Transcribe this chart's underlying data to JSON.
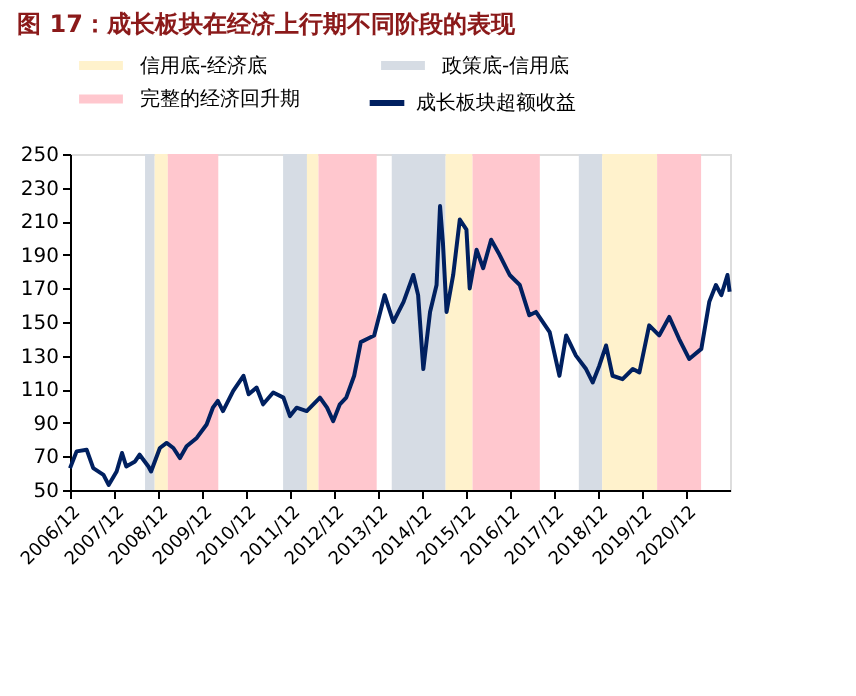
{
  "chart_data": {
    "type": "line",
    "title": "图 17：成长板块在经济上行期不同阶段的表现",
    "x": [
      "2006-12-01",
      "2007-01-25",
      "2007-04-18",
      "2007-06-12",
      "2007-09-05",
      "2007-10-18",
      "2007-12-23",
      "2008-02-06",
      "2008-03-12",
      "2008-05-24",
      "2008-07-01",
      "2008-09-12",
      "2008-10-04",
      "2008-12-16",
      "2009-02-10",
      "2009-04-07",
      "2009-06-01",
      "2009-07-26",
      "2009-10-18",
      "2010-01-08",
      "2010-03-01",
      "2010-04-11",
      "2010-05-24",
      "2010-08-17",
      "2010-11-10",
      "2010-12-23",
      "2011-02-27",
      "2011-04-22",
      "2011-07-15",
      "2011-10-08",
      "2011-12-01",
      "2012-01-25",
      "2012-04-18",
      "2012-06-12",
      "2012-08-06",
      "2012-10-04",
      "2012-11-24",
      "2013-01-18",
      "2013-03-12",
      "2013-05-17",
      "2013-07-11",
      "2013-09-05",
      "2013-10-30",
      "2014-01-25",
      "2014-04-07",
      "2014-07-01",
      "2014-09-20",
      "2014-10-30",
      "2014-12-12",
      "2015-02-06",
      "2015-04-01",
      "2015-04-30",
      "2015-05-24",
      "2015-06-23",
      "2015-08-17",
      "2015-10-11",
      "2015-12-05",
      "2016-01-01",
      "2016-02-27",
      "2016-04-22",
      "2016-06-27",
      "2016-09-05",
      "2016-11-28",
      "2017-02-20",
      "2017-05-10",
      "2017-07-04",
      "2017-10-26",
      "2018-01-15",
      "2018-03-12",
      "2018-06-01",
      "2018-08-24",
      "2018-10-18",
      "2018-12-12",
      "2019-02-06",
      "2019-04-01",
      "2019-06-23",
      "2019-09-16",
      "2019-11-10",
      "2020-01-30",
      "2020-04-22",
      "2020-07-15",
      "2020-10-04",
      "2020-12-27",
      "2021-04-07",
      "2021-06-12",
      "2021-08-06",
      "2021-09-20",
      "2021-11-10",
      "2021-11-28"
    ],
    "series": [
      {
        "name": "成长板块超额收益",
        "color": "#002060",
        "values": [
          63,
          73,
          74,
          63,
          59,
          53,
          61,
          72,
          64,
          67,
          71,
          64,
          61,
          75,
          78,
          75,
          69,
          76,
          81,
          89,
          99,
          103,
          97,
          109,
          118,
          107,
          111,
          101,
          108,
          105,
          94,
          99,
          97,
          101,
          105,
          99,
          91,
          101,
          105,
          118,
          138,
          140,
          142,
          166,
          150,
          162,
          178,
          166,
          122,
          156,
          172,
          219,
          197,
          156,
          178,
          211,
          205,
          170,
          193,
          182,
          199,
          190,
          178,
          172,
          154,
          156,
          144,
          118,
          142,
          130,
          122,
          114,
          124,
          136,
          118,
          116,
          122,
          120,
          148,
          142,
          153,
          140,
          128,
          134,
          162,
          172,
          166,
          178,
          168
        ]
      }
    ],
    "xlim": [
      "2006-12-01",
      "2021-12-01"
    ],
    "xticks": [
      {
        "value": "2006-12-01",
        "label": "2006/12"
      },
      {
        "value": "2007-12-01",
        "label": "2007/12"
      },
      {
        "value": "2008-12-01",
        "label": "2008/12"
      },
      {
        "value": "2009-12-01",
        "label": "2009/12"
      },
      {
        "value": "2010-12-01",
        "label": "2010/12"
      },
      {
        "value": "2011-12-01",
        "label": "2011/12"
      },
      {
        "value": "2012-12-01",
        "label": "2012/12"
      },
      {
        "value": "2013-12-01",
        "label": "2013/12"
      },
      {
        "value": "2014-12-01",
        "label": "2014/12"
      },
      {
        "value": "2015-12-01",
        "label": "2015/12"
      },
      {
        "value": "2016-12-01",
        "label": "2016/12"
      },
      {
        "value": "2017-12-01",
        "label": "2017/12"
      },
      {
        "value": "2018-12-01",
        "label": "2018/12"
      },
      {
        "value": "2019-12-01",
        "label": "2019/12"
      },
      {
        "value": "2020-12-01",
        "label": "2020/12"
      }
    ],
    "ylim": [
      50,
      250
    ],
    "yticks": [
      50,
      70,
      90,
      110,
      130,
      150,
      170,
      190,
      210,
      230,
      250
    ],
    "bands": [
      {
        "axis": "x",
        "from": "2008-11-01",
        "to": "2009-02-20",
        "label": "信用底-经济底",
        "color": "#fff2cc"
      },
      {
        "axis": "x",
        "from": "2008-08-15",
        "to": "2008-11-01",
        "label": "政策底-信用底",
        "color": "#d6dce4"
      },
      {
        "axis": "x",
        "from": "2009-02-20",
        "to": "2010-04-15",
        "label": "完整的经济回升期",
        "color": "#ffc7ce"
      },
      {
        "axis": "x",
        "from": "2011-10-05",
        "to": "2012-04-20",
        "color": "#d6dce4"
      },
      {
        "axis": "x",
        "from": "2012-04-20",
        "to": "2012-07-25",
        "color": "#fff2cc"
      },
      {
        "axis": "x",
        "from": "2012-07-25",
        "to": "2013-11-20",
        "color": "#ffc7ce"
      },
      {
        "axis": "x",
        "from": "2014-03-25",
        "to": "2015-06-15",
        "color": "#d6dce4"
      },
      {
        "axis": "x",
        "from": "2015-06-15",
        "to": "2016-01-25",
        "color": "#fff2cc"
      },
      {
        "axis": "x",
        "from": "2016-01-25",
        "to": "2017-08-05",
        "color": "#ffc7ce"
      },
      {
        "axis": "x",
        "from": "2018-06-25",
        "to": "2019-01-05",
        "color": "#d6dce4"
      },
      {
        "axis": "x",
        "from": "2019-01-05",
        "to": "2020-04-05",
        "color": "#fff2cc"
      },
      {
        "axis": "x",
        "from": "2020-04-05",
        "to": "2021-04-05",
        "color": "#ffc7ce"
      }
    ],
    "legend": "top",
    "grid": false,
    "marker": "none",
    "line_style": "solid"
  }
}
